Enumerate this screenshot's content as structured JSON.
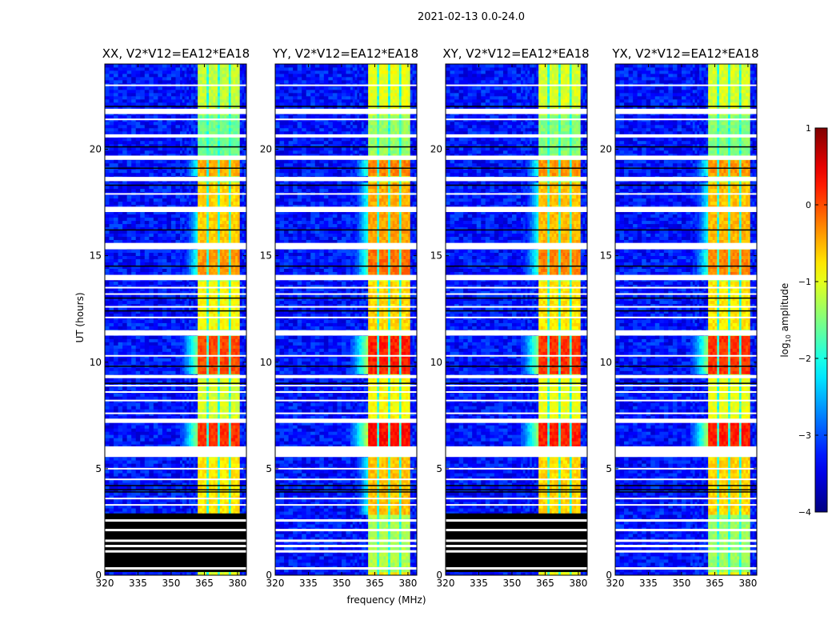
{
  "suptitle": "2021-02-13 0.0-24.0",
  "xlabel": "frequency (MHz)",
  "ylabel": "UT (hours)",
  "colorbar": {
    "label": "log",
    "label_sub": "10",
    "label_rest": " amplitude",
    "range": [
      -4,
      1
    ],
    "ticks": [
      "1",
      "0",
      "−1",
      "−2",
      "−3",
      "−4"
    ],
    "colormap": "jet"
  },
  "chart_data": {
    "type": "heatmap",
    "x_range_mhz": [
      320,
      384
    ],
    "y_range_hours": [
      0,
      24
    ],
    "x_ticks": [
      "320",
      "335",
      "350",
      "365",
      "380"
    ],
    "x_tick_values": [
      320,
      335,
      350,
      365,
      380
    ],
    "y_ticks": [
      "0",
      "5",
      "10",
      "15",
      "20"
    ],
    "y_tick_values": [
      0,
      5,
      10,
      15,
      20
    ],
    "value_range_log10": [
      -4,
      1
    ],
    "background_level_log10": -3.3,
    "rfi_band_mhz": [
      362,
      381
    ],
    "rfi_band_gaps_mhz": [
      366.5,
      371.5,
      376.5
    ],
    "panels": [
      {
        "title": "XX, V2*V12=EA12*EA18",
        "level_offset": -0.1,
        "bottom_zeroed": true
      },
      {
        "title": "YY, V2*V12=EA12*EA18",
        "level_offset": 0.1,
        "bottom_zeroed": false
      },
      {
        "title": "XY, V2*V12=EA12*EA18",
        "level_offset": 0.0,
        "bottom_zeroed": true
      },
      {
        "title": "YX, V2*V12=EA12*EA18",
        "level_offset": 0.0,
        "bottom_zeroed": false
      }
    ],
    "segments": [
      {
        "t": [
          21.9,
          24.0
        ],
        "kind": "data",
        "band_level": -0.9
      },
      {
        "t": [
          21.65,
          21.9
        ],
        "kind": "flagged"
      },
      {
        "t": [
          20.7,
          21.65
        ],
        "kind": "data",
        "band_level": -1.3
      },
      {
        "t": [
          20.55,
          20.7
        ],
        "kind": "flagged"
      },
      {
        "t": [
          19.7,
          20.55
        ],
        "kind": "data",
        "band_level": -1.3
      },
      {
        "t": [
          19.5,
          19.7
        ],
        "kind": "flagged"
      },
      {
        "t": [
          18.7,
          19.5
        ],
        "kind": "data",
        "band_level": -0.2
      },
      {
        "t": [
          18.5,
          18.7
        ],
        "kind": "flagged"
      },
      {
        "t": [
          17.3,
          18.5
        ],
        "kind": "data",
        "band_level": -0.4
      },
      {
        "t": [
          17.05,
          17.3
        ],
        "kind": "flagged"
      },
      {
        "t": [
          15.6,
          17.05
        ],
        "kind": "data",
        "band_level": -0.35
      },
      {
        "t": [
          15.3,
          15.6
        ],
        "kind": "flagged"
      },
      {
        "t": [
          14.1,
          15.3
        ],
        "kind": "data",
        "band_level": -0.1
      },
      {
        "t": [
          13.85,
          14.1
        ],
        "kind": "flagged"
      },
      {
        "t": [
          11.5,
          13.85
        ],
        "kind": "data",
        "band_level": -0.6
      },
      {
        "t": [
          11.25,
          11.5
        ],
        "kind": "flagged"
      },
      {
        "t": [
          9.4,
          11.25
        ],
        "kind": "data",
        "band_level": 0.3
      },
      {
        "t": [
          9.25,
          9.4
        ],
        "kind": "flagged"
      },
      {
        "t": [
          7.35,
          9.25
        ],
        "kind": "data",
        "band_level": -0.8
      },
      {
        "t": [
          7.15,
          7.35
        ],
        "kind": "flagged"
      },
      {
        "t": [
          6.05,
          7.15
        ],
        "kind": "data",
        "band_level": 0.4
      },
      {
        "t": [
          5.55,
          6.05
        ],
        "kind": "flagged"
      },
      {
        "t": [
          2.9,
          5.55
        ],
        "kind": "data",
        "band_level": -0.5
      },
      {
        "t": [
          0.15,
          2.9
        ],
        "kind": "bottom",
        "band_level": -1.2
      },
      {
        "t": [
          0.0,
          0.15
        ],
        "kind": "data",
        "band_level": -0.7
      }
    ],
    "flag_lines_hours": [
      23.0,
      21.4,
      17.9,
      13.5,
      13.2,
      12.6,
      12.1,
      10.3,
      8.9,
      8.6,
      8.2,
      7.6,
      5.0,
      4.5,
      3.6,
      3.3
    ],
    "zero_lines_hours": [
      22.0,
      20.1,
      19.1,
      18.3,
      16.2,
      14.5,
      13.0,
      12.4,
      9.8,
      9.0,
      4.2,
      4.0,
      3.9
    ]
  }
}
